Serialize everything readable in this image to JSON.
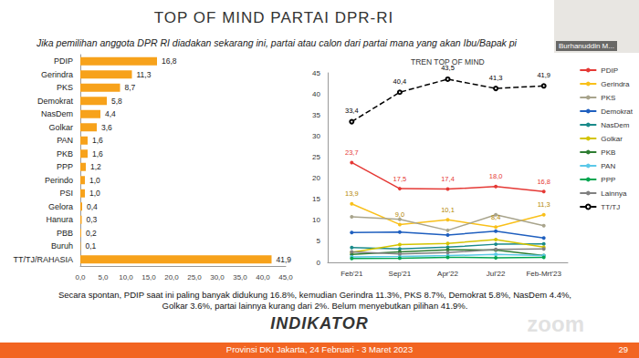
{
  "header": {
    "title": "TOP OF MIND PARTAI DPR-RI",
    "question": "Jika pemilihan anggota DPR RI diadakan sekarang ini, partai atau calon dari partai mana yang akan Ibu/Bapak pi"
  },
  "chart_data": [
    {
      "type": "bar",
      "orientation": "horizontal",
      "color": "#f7a21b",
      "data_labels": true,
      "grid": false,
      "categories": [
        "PDIP",
        "Gerindra",
        "PKS",
        "Demokrat",
        "NasDem",
        "Golkar",
        "PAN",
        "PKB",
        "PPP",
        "Perindo",
        "PSI",
        "Gelora",
        "Hanura",
        "PBB",
        "Buruh",
        "TT/TJ/RAHASIA"
      ],
      "values": [
        16.8,
        11.3,
        8.7,
        5.8,
        4.4,
        3.6,
        1.6,
        1.6,
        1.2,
        1.0,
        1.0,
        0.4,
        0.3,
        0.2,
        0.1,
        41.9
      ],
      "value_labels": [
        "16,8",
        "11,3",
        "8,7",
        "5,8",
        "4,4",
        "3,6",
        "1,6",
        "1,6",
        "1,2",
        "1,0",
        "1,0",
        "0,4",
        "0,3",
        "0,2",
        "0,1",
        "41,9"
      ],
      "xlim": [
        0,
        45
      ],
      "xticks": [
        {
          "value": 0,
          "label": "0,0"
        },
        {
          "value": 5,
          "label": "5,0"
        },
        {
          "value": 10,
          "label": "10,0"
        },
        {
          "value": 15,
          "label": "15,0"
        },
        {
          "value": 20,
          "label": "20,0"
        },
        {
          "value": 25,
          "label": "25,0"
        },
        {
          "value": 30,
          "label": "30,0"
        },
        {
          "value": 35,
          "label": "35,0"
        },
        {
          "value": 40,
          "label": "40,0"
        },
        {
          "value": 45,
          "label": "45,0"
        }
      ]
    },
    {
      "type": "line",
      "title": "TREN TOP OF MIND",
      "legend": "right",
      "grid": false,
      "categories": [
        "Feb'21",
        "Sep'21",
        "Apr'22",
        "Jul'22",
        "Feb-Mrt'23"
      ],
      "ylim": [
        0,
        45
      ],
      "yticks": [
        0,
        5,
        10,
        15,
        20,
        25,
        30,
        35,
        40,
        45
      ],
      "series": [
        {
          "name": "PDIP",
          "color": "#e53935",
          "marker": "circle",
          "line_style": "solid",
          "data_labels": true,
          "values": [
            23.7,
            17.5,
            17.4,
            18.0,
            16.8
          ],
          "value_labels": [
            "23,7",
            "17,5",
            "17,4",
            "18,0",
            "16,8"
          ]
        },
        {
          "name": "Gerindra",
          "color": "#f9c01a",
          "marker": "circle",
          "line_style": "solid",
          "data_labels": true,
          "values": [
            13.9,
            9.0,
            10.1,
            8.4,
            11.3
          ],
          "value_labels": [
            "13,9",
            "9,0",
            "10,1",
            "8,4",
            "11,3"
          ]
        },
        {
          "name": "PKS",
          "color": "#a8a48c",
          "marker": "circle",
          "line_style": "solid",
          "values": [
            10.8,
            10.2,
            7.6,
            11.3,
            8.7
          ]
        },
        {
          "name": "Demokrat",
          "color": "#1f5fbf",
          "marker": "circle",
          "line_style": "solid",
          "values": [
            7.1,
            7.2,
            6.5,
            7.4,
            5.8
          ]
        },
        {
          "name": "NasDem",
          "color": "#1a8a8a",
          "marker": "circle",
          "line_style": "solid",
          "values": [
            3.5,
            3.2,
            3.6,
            4.3,
            4.4
          ]
        },
        {
          "name": "Golkar",
          "color": "#d4c400",
          "marker": "circle",
          "line_style": "solid",
          "values": [
            2.4,
            4.2,
            4.5,
            5.4,
            3.6
          ]
        },
        {
          "name": "PKB",
          "color": "#2e7d32",
          "marker": "circle",
          "line_style": "solid",
          "values": [
            1.9,
            2.5,
            3.0,
            2.9,
            1.6
          ]
        },
        {
          "name": "PAN",
          "color": "#5bc8e8",
          "marker": "circle",
          "line_style": "solid",
          "values": [
            1.3,
            1.4,
            1.6,
            1.9,
            1.6
          ]
        },
        {
          "name": "PPP",
          "color": "#00a651",
          "marker": "circle",
          "line_style": "solid",
          "values": [
            0.9,
            1.0,
            1.2,
            1.1,
            1.2
          ]
        },
        {
          "name": "Lainnya",
          "color": "#808080",
          "marker": "circle",
          "line_style": "solid",
          "values": [
            2.5,
            2.0,
            2.3,
            3.1,
            3.2
          ]
        },
        {
          "name": "TT/TJ",
          "color": "#000000",
          "marker": "emptyCircle",
          "line_style": "dashed",
          "data_labels": true,
          "values": [
            33.4,
            40.4,
            43.5,
            41.3,
            41.9
          ],
          "value_labels": [
            "33,4",
            "40,4",
            "43,5",
            "41,3",
            "41,9"
          ]
        }
      ]
    }
  ],
  "note": "Secara spontan, PDIP saat ini paling banyak didukung 16.8%, kemudian Gerindra 11.3%, PKS 8.7%, Demokrat 5.8%, NasDem 4.4%, Golkar 3.6%, partai lainnya kurang dari 2%. Belum menyebutkan pilihan 41.9%.",
  "logo": "INDIKATOR",
  "footer": "Provinsi DKI Jakarta, 24 Februari - 3 Maret 2023",
  "page": "29",
  "video_name": "Burhanuddin M...",
  "watermark": "zoom"
}
